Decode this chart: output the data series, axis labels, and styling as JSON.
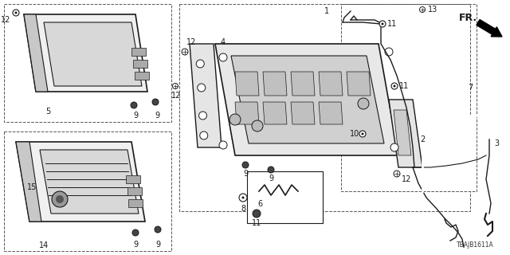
{
  "bg_color": "#ffffff",
  "diagram_id": "TBAJB1611A",
  "fr_label": "FR.",
  "lc": "#1a1a1a",
  "dc": "#555555",
  "lfs": 7.0
}
